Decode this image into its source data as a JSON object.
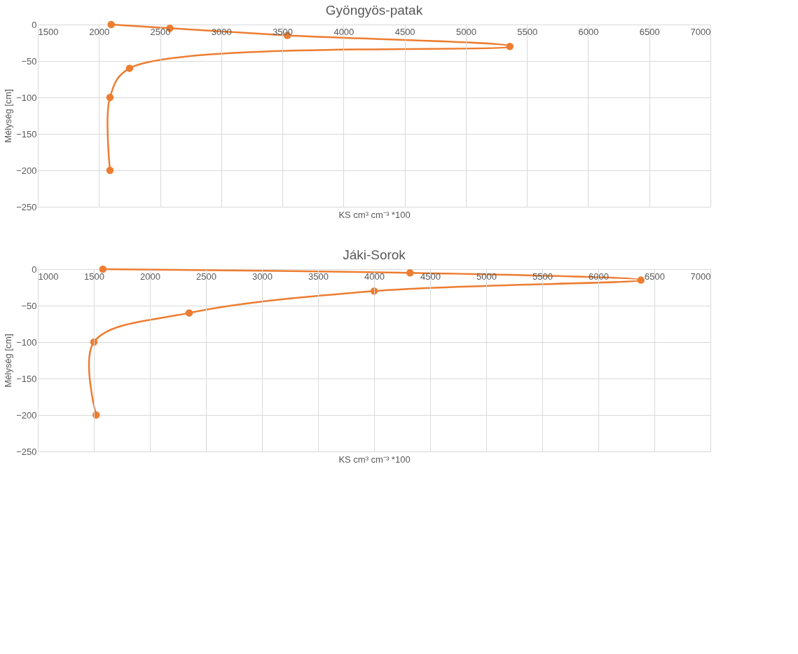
{
  "chart_data": [
    {
      "type": "line",
      "title": "Gyöngyös-patak",
      "xlabel": "KS cm³ cm⁻³ *100",
      "ylabel": "Mélység [cm]",
      "xlim": [
        1500,
        7000
      ],
      "xticks": [
        1500,
        2000,
        2500,
        3000,
        3500,
        4000,
        4500,
        5000,
        5500,
        6000,
        6500,
        7000
      ],
      "ylim": [
        -250,
        0
      ],
      "yticks": [
        0,
        -50,
        -100,
        -150,
        -200,
        -250
      ],
      "grid": true,
      "marker": "circle",
      "line_style": "solid",
      "series": [
        {
          "color": "#ed7d31",
          "x": [
            2100,
            2580,
            3540,
            5360,
            2250,
            2090,
            2090
          ],
          "values": [
            0,
            -5,
            -15,
            -30,
            -60,
            -100,
            -200
          ]
        }
      ]
    },
    {
      "type": "line",
      "title": "Jáki-Sorok",
      "xlabel": "KS cm³ cm⁻³ *100",
      "ylabel": "Mélység [cm]",
      "xlim": [
        1000,
        7000
      ],
      "xticks": [
        1000,
        1500,
        2000,
        2500,
        3000,
        3500,
        4000,
        4500,
        5000,
        5500,
        6000,
        6500,
        7000
      ],
      "ylim": [
        -250,
        0
      ],
      "yticks": [
        0,
        -50,
        -100,
        -150,
        -200,
        -250
      ],
      "grid": true,
      "marker": "circle",
      "line_style": "solid",
      "series": [
        {
          "color": "#ed7d31",
          "x": [
            1580,
            4320,
            6380,
            4000,
            2350,
            1500,
            1520
          ],
          "values": [
            0,
            -5,
            -15,
            -30,
            -60,
            -100,
            -200
          ]
        }
      ]
    }
  ]
}
